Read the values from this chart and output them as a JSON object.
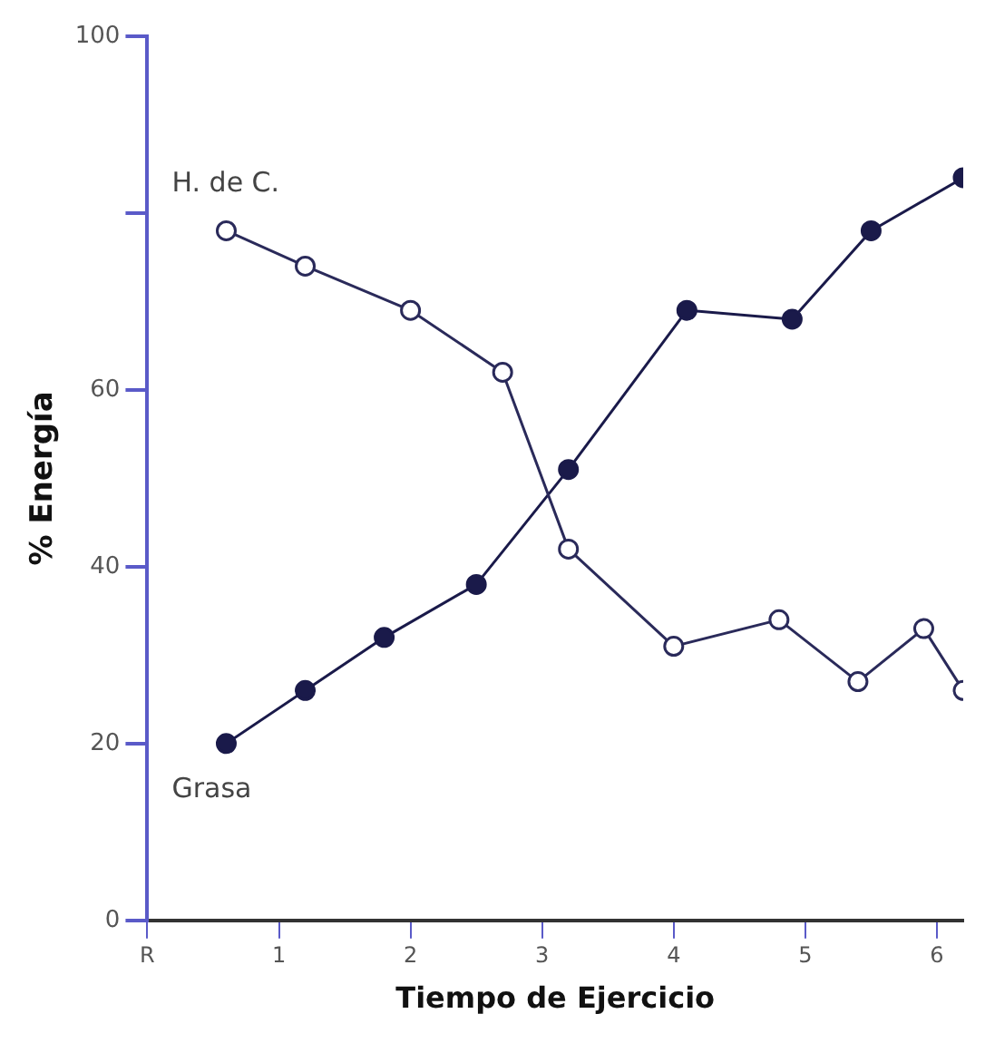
{
  "chart_data": {
    "type": "line",
    "xlabel": "Tiempo de Ejercicio",
    "ylabel": "% Energía",
    "xlim": [
      0,
      6.2
    ],
    "xticks": [
      {
        "value": 0,
        "label": "R"
      },
      1,
      2,
      3,
      4,
      5,
      6
    ],
    "ylim": [
      0,
      100
    ],
    "yticks": [
      0,
      20,
      40,
      60,
      {
        "value": 80,
        "label": null
      },
      100
    ],
    "grid": false,
    "legend": false,
    "marker": "circle",
    "line_style": "solid",
    "series": [
      {
        "name": "H. de C.",
        "color": "#2a2a5a",
        "x": [
          0.6,
          1.2,
          2.0,
          2.7,
          3.2,
          4.0,
          4.8,
          5.4,
          5.9,
          6.2
        ],
        "values": [
          78,
          74,
          69,
          62,
          42,
          31,
          34,
          27,
          33,
          26
        ]
      },
      {
        "name": "Grasa",
        "color": "#1a1a4a",
        "x": [
          0.6,
          1.2,
          1.8,
          2.5,
          3.2,
          4.1,
          4.9,
          5.5,
          6.2
        ],
        "values": [
          20,
          26,
          32,
          38,
          51,
          69,
          68,
          78,
          84
        ]
      }
    ]
  }
}
